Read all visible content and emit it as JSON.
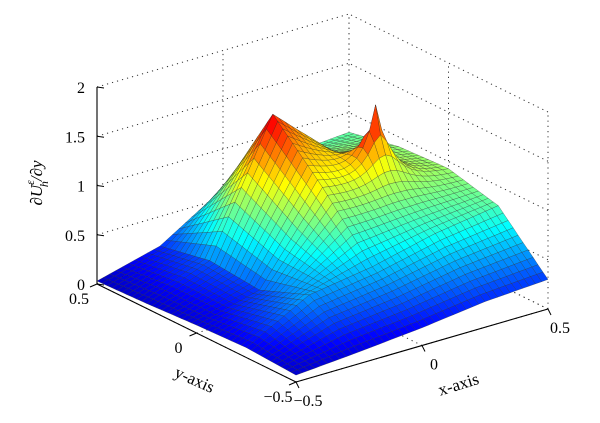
{
  "chart_data": {
    "type": "surface",
    "title": "",
    "xlabel": "x-axis",
    "ylabel": "y-axis",
    "zlabel": "∂U_h^ε/∂y",
    "xlim": [
      -0.5,
      0.5
    ],
    "ylim": [
      -0.5,
      0.5
    ],
    "zlim": [
      0,
      2
    ],
    "xticks": [
      "−0.5",
      "0",
      "0.5"
    ],
    "yticks": [
      "−0.5",
      "0",
      "0.5"
    ],
    "zticks": [
      "0",
      "0.5",
      "1",
      "1.5",
      "2"
    ],
    "grid": true,
    "colormap": "jet",
    "resolution": 40,
    "x": [
      -0.5,
      -0.25,
      0,
      0.25,
      0.5
    ],
    "y": [
      -0.5,
      -0.25,
      0,
      0.25,
      0.5
    ],
    "z": [
      [
        0.07,
        0.12,
        0.18,
        0.26,
        0.3
      ],
      [
        0.1,
        0.45,
        0.55,
        0.7,
        0.8
      ],
      [
        0.08,
        0.25,
        1.1,
        0.95,
        0.92
      ],
      [
        0.05,
        0.3,
        1.6,
        1.0,
        0.9
      ],
      [
        0.03,
        0.2,
        0.6,
        0.75,
        0.8
      ]
    ],
    "peak": {
      "x": 0.25,
      "y": 0.05,
      "z": 1.75
    }
  },
  "colors": {
    "background": "#ffffff",
    "axis": "#000000",
    "grid": "#333333",
    "mesh_edge": "#2a2a2a"
  }
}
